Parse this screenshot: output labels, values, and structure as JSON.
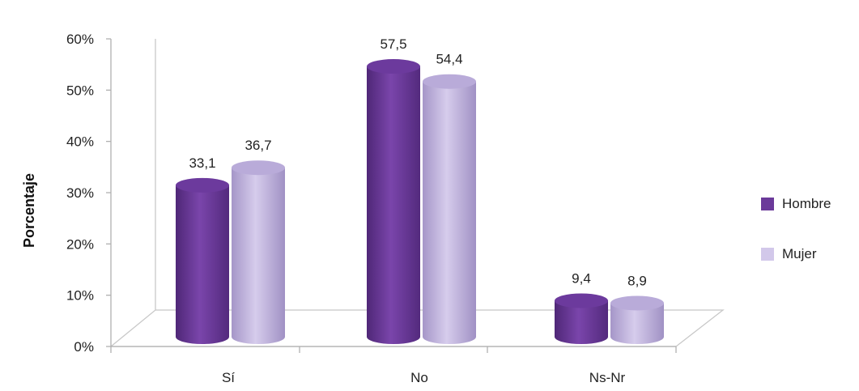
{
  "chart_data": {
    "type": "bar",
    "categories": [
      "Sí",
      "No",
      "Ns-Nr"
    ],
    "series": [
      {
        "name": "Hombre",
        "values": [
          33.1,
          57.5,
          9.4
        ],
        "labels": [
          "33,1",
          "57,5",
          "9,4"
        ],
        "color": "#6b3a9a"
      },
      {
        "name": "Mujer",
        "values": [
          36.7,
          54.4,
          8.9
        ],
        "labels": [
          "36,7",
          "54,4",
          "8,9"
        ],
        "color": "#bfb0dd"
      }
    ],
    "yticks": [
      "0%",
      "10%",
      "20%",
      "30%",
      "40%",
      "50%",
      "60%"
    ],
    "ylim": [
      0,
      60
    ],
    "ylabel": "Porcentaje",
    "xlabel": "",
    "legend_position": "right",
    "grid": false
  }
}
